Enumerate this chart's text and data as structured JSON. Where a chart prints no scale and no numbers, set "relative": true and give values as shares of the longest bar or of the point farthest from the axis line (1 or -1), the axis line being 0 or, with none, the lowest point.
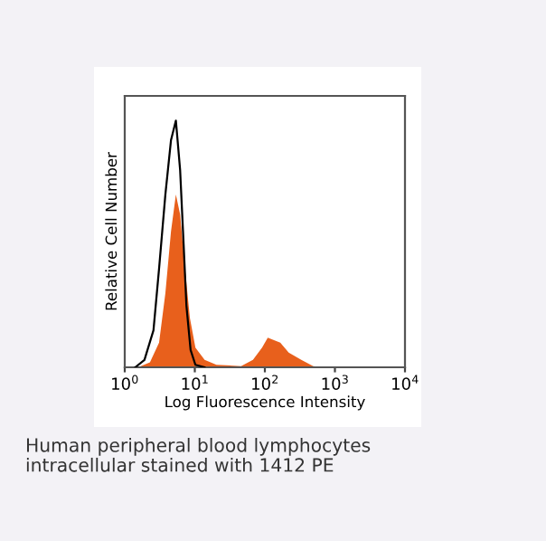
{
  "chart_data": {
    "type": "area",
    "relative": true,
    "xlabel": "Log Fluorescence Intensity",
    "ylabel": "Relative Cell Number",
    "log": "x",
    "xlim": [
      1,
      10000
    ],
    "xticks": [
      {
        "value": 1,
        "label": "10$^{0}$"
      },
      {
        "value": 10,
        "label": "10$^{1}$"
      },
      {
        "value": 100,
        "label": "10$^{2}$"
      },
      {
        "value": 1000,
        "label": "10$^{3}$"
      },
      {
        "value": 10000,
        "label": "10$^{4}$"
      }
    ],
    "grid": false,
    "legend": false,
    "series": [
      {
        "color": "#e8601c",
        "x": [
          1.55,
          2.29,
          3.09,
          3.8,
          4.57,
          5.37,
          6.17,
          7.24,
          8.51,
          10.2,
          13.8,
          20.4,
          45.7,
          67.6,
          91.2,
          110,
          135,
          166,
          219,
          331,
          490,
          661
        ],
        "values": [
          0,
          0.02,
          0.1,
          0.3,
          0.55,
          0.7,
          0.62,
          0.4,
          0.2,
          0.08,
          0.03,
          0.01,
          0.005,
          0.03,
          0.08,
          0.12,
          0.11,
          0.1,
          0.06,
          0.03,
          0.005,
          0
        ]
      },
      {
        "type": "line",
        "color": "#000000",
        "x": [
          1.41,
          1.91,
          2.57,
          3.09,
          3.8,
          4.57,
          5.37,
          6.17,
          6.92,
          7.59,
          8.71,
          10.2,
          13.8
        ],
        "values": [
          0,
          0.03,
          0.15,
          0.4,
          0.7,
          0.92,
          1.0,
          0.8,
          0.5,
          0.25,
          0.07,
          0.01,
          0
        ]
      }
    ],
    "annotations": [
      "Human peripheral blood lymphocytes\nintracellular stained with 1412 PE"
    ]
  }
}
